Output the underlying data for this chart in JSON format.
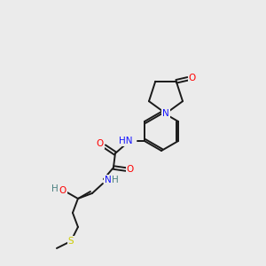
{
  "bg_color": "#ebebeb",
  "bond_color": "#1a1a1a",
  "atom_colors": {
    "N": "#1414ff",
    "O": "#ff0000",
    "S": "#cccc00",
    "H": "#4a8080"
  },
  "figsize": [
    3.0,
    3.0
  ],
  "dpi": 100,
  "lw": 1.4,
  "fontsize": 7.5
}
